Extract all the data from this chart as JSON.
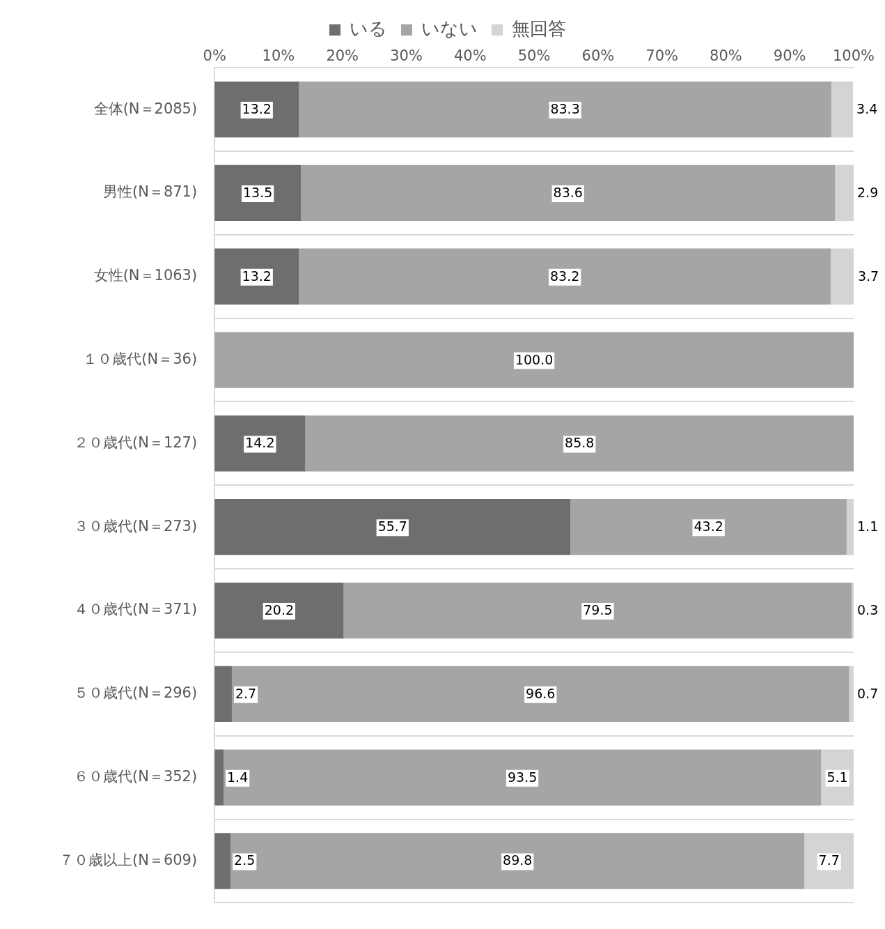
{
  "chart_data": {
    "type": "bar",
    "orientation": "horizontal",
    "stacked": true,
    "categories": [
      "全体(N＝2085)",
      "男性(N＝871)",
      "女性(N＝1063)",
      "１０歳代(N＝36)",
      "２０歳代(N＝127)",
      "３０歳代(N＝273)",
      "４０歳代(N＝371)",
      "５０歳代(N＝296)",
      "６０歳代(N＝352)",
      "７０歳以上(N＝609)"
    ],
    "series": [
      {
        "name": "いる",
        "color": "#6e6e6e",
        "values": [
          13.2,
          13.5,
          13.2,
          null,
          14.2,
          55.7,
          20.2,
          2.7,
          1.4,
          2.5
        ],
        "value_labels": [
          "13.2",
          "13.5",
          "13.2",
          null,
          "14.2",
          "55.7",
          "20.2",
          "2.7",
          "1.4",
          "2.5"
        ]
      },
      {
        "name": "いない",
        "color": "#a5a5a5",
        "values": [
          83.3,
          83.6,
          83.2,
          100.0,
          85.8,
          43.2,
          79.5,
          96.6,
          93.5,
          89.8
        ],
        "value_labels": [
          "83.3",
          "83.6",
          "83.2",
          "100.0",
          "85.8",
          "43.2",
          "79.5",
          "96.6",
          "93.5",
          "89.8"
        ]
      },
      {
        "name": "無回答",
        "color": "#d4d4d4",
        "values": [
          3.4,
          2.9,
          3.7,
          null,
          null,
          1.1,
          0.3,
          0.7,
          5.1,
          7.7
        ],
        "value_labels": [
          "3.4",
          "2.9",
          "3.7",
          null,
          null,
          "1.1",
          "0.3",
          "0.7",
          "5.1",
          "7.7"
        ]
      }
    ],
    "xlim": [
      0,
      100
    ],
    "xticks": [
      {
        "value": 0,
        "label": "0%"
      },
      {
        "value": 10,
        "label": "10%"
      },
      {
        "value": 20,
        "label": "20%"
      },
      {
        "value": 30,
        "label": "30%"
      },
      {
        "value": 40,
        "label": "40%"
      },
      {
        "value": 50,
        "label": "50%"
      },
      {
        "value": 60,
        "label": "60%"
      },
      {
        "value": 70,
        "label": "70%"
      },
      {
        "value": 80,
        "label": "80%"
      },
      {
        "value": 90,
        "label": "90%"
      },
      {
        "value": 100,
        "label": "100%"
      }
    ],
    "grid": "y",
    "legend": "top"
  }
}
